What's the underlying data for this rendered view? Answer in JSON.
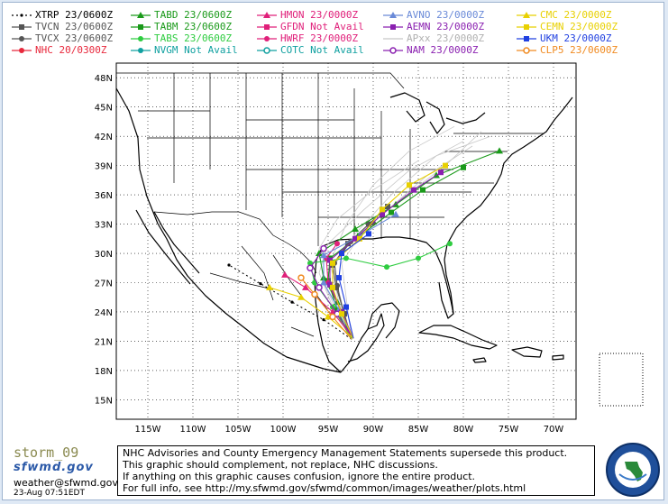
{
  "legend": [
    {
      "label": "XTRP 23/0600Z",
      "color": "#000000",
      "marker": "dot",
      "dashed": true
    },
    {
      "label": "TVCN 23/0600Z",
      "color": "#555555",
      "marker": "square",
      "dashed": false
    },
    {
      "label": "TVCX 23/0600Z",
      "color": "#555555",
      "marker": "circle",
      "dashed": false
    },
    {
      "label": "NHC 20/0300Z",
      "color": "#e8283c",
      "marker": "circle",
      "dashed": false
    },
    {
      "label": "TABD 23/0600Z",
      "color": "#1a9a1a",
      "marker": "triangle",
      "dashed": false
    },
    {
      "label": "TABM 23/0600Z",
      "color": "#1a9a1a",
      "marker": "square",
      "dashed": false
    },
    {
      "label": "TABS 23/0600Z",
      "color": "#2ecc40",
      "marker": "circle",
      "dashed": false
    },
    {
      "label": "NVGM Not Avail",
      "color": "#10a0a0",
      "marker": "circle",
      "dashed": false
    },
    {
      "label": "HMON 23/0000Z",
      "color": "#e0207a",
      "marker": "triangle",
      "dashed": false
    },
    {
      "label": "GFDN Not Avail",
      "color": "#e0207a",
      "marker": "square",
      "dashed": false
    },
    {
      "label": "HWRF 23/0000Z",
      "color": "#e0207a",
      "marker": "circle",
      "dashed": false
    },
    {
      "label": "COTC Not Avail",
      "color": "#10a0a0",
      "marker": "ring",
      "dashed": false
    },
    {
      "label": "AVNO 23/0000Z",
      "color": "#6a8ad8",
      "marker": "triangle",
      "dashed": false
    },
    {
      "label": "AEMN 23/0000Z",
      "color": "#8a20b0",
      "marker": "square",
      "dashed": false
    },
    {
      "label": "APxx 23/0000Z",
      "color": "#c8c8c8",
      "marker": "none",
      "dashed": false
    },
    {
      "label": "NAM 23/0000Z",
      "color": "#8a20b0",
      "marker": "ring",
      "dashed": false
    },
    {
      "label": "CMC 23/0000Z",
      "color": "#e8d000",
      "marker": "triangle",
      "dashed": false
    },
    {
      "label": "CEMN 23/0000Z",
      "color": "#e8d000",
      "marker": "square",
      "dashed": false
    },
    {
      "label": "UKM 23/0000Z",
      "color": "#2040e0",
      "marker": "square",
      "dashed": false
    },
    {
      "label": "CLP5 23/0600Z",
      "color": "#f08a20",
      "marker": "ring",
      "dashed": false
    }
  ],
  "map": {
    "lat_labels": [
      "48N",
      "45N",
      "42N",
      "39N",
      "36N",
      "33N",
      "30N",
      "27N",
      "24N",
      "21N",
      "18N",
      "15N"
    ],
    "lon_labels": [
      "115W",
      "110W",
      "105W",
      "100W",
      "95W",
      "90W",
      "85W",
      "80W",
      "75W",
      "70W"
    ],
    "lat_values": [
      48,
      45,
      42,
      39,
      36,
      33,
      30,
      27,
      24,
      21,
      18,
      15
    ],
    "lon_values": [
      -115,
      -110,
      -105,
      -100,
      -95,
      -90,
      -85,
      -80,
      -75,
      -70
    ],
    "lon_range": [
      -118.5,
      -67.5
    ],
    "lat_range": [
      13,
      49.5
    ]
  },
  "tracks": [
    {
      "model": "XTRP 23/0600Z",
      "color": "#000000",
      "marker": "dot",
      "dashed": true,
      "points": [
        [
          -92.4,
          21.2
        ],
        [
          -95.5,
          23.2
        ],
        [
          -99.0,
          25.0
        ],
        [
          -102.5,
          26.9
        ],
        [
          -106.0,
          28.8
        ]
      ]
    },
    {
      "model": "TVCN 23/0600Z",
      "color": "#555555",
      "marker": "square",
      "dashed": false,
      "points": [
        [
          -92.4,
          21.2
        ],
        [
          -93.2,
          23.8
        ],
        [
          -94.1,
          26.5
        ],
        [
          -94.5,
          28.8
        ],
        [
          -92.8,
          31.0
        ],
        [
          -90.5,
          33.0
        ],
        [
          -88.4,
          34.8
        ]
      ]
    },
    {
      "model": "TVCX 23/0600Z",
      "color": "#555555",
      "marker": "circle",
      "dashed": false,
      "points": [
        [
          -92.4,
          21.2
        ],
        [
          -93.3,
          23.9
        ],
        [
          -94.0,
          26.7
        ],
        [
          -94.3,
          29.0
        ],
        [
          -92.5,
          31.2
        ],
        [
          -90.0,
          33.1
        ]
      ]
    },
    {
      "model": "TABD 23/0600Z",
      "color": "#1a9a1a",
      "marker": "triangle",
      "dashed": false,
      "points": [
        [
          -92.4,
          21.2
        ],
        [
          -94.0,
          25.0
        ],
        [
          -95.5,
          27.5
        ],
        [
          -96.0,
          30.0
        ],
        [
          -92.0,
          32.5
        ],
        [
          -87.5,
          35.0
        ],
        [
          -83.0,
          38.0
        ],
        [
          -76.0,
          40.5
        ]
      ]
    },
    {
      "model": "TABM 23/0600Z",
      "color": "#1a9a1a",
      "marker": "square",
      "dashed": false,
      "points": [
        [
          -92.4,
          21.2
        ],
        [
          -94.0,
          24.2
        ],
        [
          -95.0,
          27.2
        ],
        [
          -94.8,
          29.5
        ],
        [
          -91.5,
          31.8
        ],
        [
          -88.0,
          34.2
        ],
        [
          -84.5,
          36.5
        ],
        [
          -80.0,
          38.8
        ]
      ]
    },
    {
      "model": "TABS 23/0600Z",
      "color": "#2ecc40",
      "marker": "circle",
      "dashed": false,
      "points": [
        [
          -92.4,
          21.2
        ],
        [
          -94.5,
          24.5
        ],
        [
          -96.5,
          27.0
        ],
        [
          -97.0,
          29.0
        ],
        [
          -93.0,
          29.5
        ],
        [
          -88.5,
          28.6
        ],
        [
          -85.0,
          29.5
        ],
        [
          -81.5,
          31.0
        ]
      ]
    },
    {
      "model": "HMON 23/0000Z",
      "color": "#e0207a",
      "marker": "triangle",
      "dashed": false,
      "points": [
        [
          -92.2,
          21.3
        ],
        [
          -94.5,
          24.0
        ],
        [
          -97.5,
          26.5
        ],
        [
          -99.8,
          27.8
        ]
      ]
    },
    {
      "model": "HWRF 23/0000Z",
      "color": "#e0207a",
      "marker": "circle",
      "dashed": false,
      "points": [
        [
          -92.2,
          21.3
        ],
        [
          -93.5,
          24.0
        ],
        [
          -95.0,
          27.0
        ],
        [
          -95.2,
          29.5
        ],
        [
          -94.0,
          31.0
        ]
      ]
    },
    {
      "model": "AVNO 23/0000Z",
      "color": "#6a8ad8",
      "marker": "triangle",
      "dashed": false,
      "points": [
        [
          -92.2,
          21.3
        ],
        [
          -93.8,
          24.2
        ],
        [
          -95.5,
          27.0
        ],
        [
          -95.5,
          29.8
        ],
        [
          -91.5,
          31.8
        ],
        [
          -87.5,
          34.0
        ]
      ]
    },
    {
      "model": "AEMN 23/0000Z",
      "color": "#8a20b0",
      "marker": "square",
      "dashed": false,
      "points": [
        [
          -92.2,
          21.3
        ],
        [
          -93.5,
          24.0
        ],
        [
          -94.8,
          26.8
        ],
        [
          -94.8,
          29.3
        ],
        [
          -92.0,
          31.5
        ],
        [
          -89.0,
          34.0
        ],
        [
          -85.5,
          36.5
        ],
        [
          -82.5,
          38.3
        ]
      ]
    },
    {
      "model": "NAM 23/0000Z",
      "color": "#8a20b0",
      "marker": "ring",
      "dashed": false,
      "points": [
        [
          -92.2,
          21.3
        ],
        [
          -94.0,
          23.8
        ],
        [
          -96.0,
          26.5
        ],
        [
          -97.0,
          28.5
        ],
        [
          -95.5,
          30.5
        ]
      ]
    },
    {
      "model": "CMC 23/0000Z",
      "color": "#e8d000",
      "marker": "triangle",
      "dashed": false,
      "points": [
        [
          -92.2,
          21.3
        ],
        [
          -95.0,
          23.5
        ],
        [
          -98.0,
          25.5
        ],
        [
          -101.5,
          26.5
        ]
      ]
    },
    {
      "model": "CEMN 23/0000Z",
      "color": "#e8d000",
      "marker": "square",
      "dashed": false,
      "points": [
        [
          -92.2,
          21.3
        ],
        [
          -93.5,
          23.8
        ],
        [
          -94.5,
          26.5
        ],
        [
          -94.5,
          29.0
        ],
        [
          -91.5,
          31.5
        ],
        [
          -89.0,
          34.5
        ],
        [
          -86.0,
          37.0
        ],
        [
          -82.0,
          39.0
        ]
      ]
    },
    {
      "model": "UKM 23/0000Z",
      "color": "#2040e0",
      "marker": "square",
      "dashed": false,
      "points": [
        [
          -92.2,
          21.3
        ],
        [
          -93.0,
          24.5
        ],
        [
          -93.8,
          27.5
        ],
        [
          -93.5,
          30.0
        ],
        [
          -90.5,
          32.0
        ]
      ]
    },
    {
      "model": "CLP5 23/0600Z",
      "color": "#f08a20",
      "marker": "ring",
      "dashed": false,
      "points": [
        [
          -92.4,
          21.2
        ],
        [
          -94.5,
          23.5
        ],
        [
          -96.5,
          25.8
        ],
        [
          -98.0,
          27.5
        ]
      ]
    }
  ],
  "footer": {
    "storm_name": "storm_09",
    "logo_text": "sfwmd.gov",
    "email": "weather@sfwmd.gov",
    "timestamp": "23-Aug 07:51EDT",
    "disclaimer": [
      "NHC Advisories and County Emergency Management Statements supersede this product.",
      "This graphic should complement, not replace, NHC discussions.",
      "If anything on this graphic causes confusion, ignore the entire product.",
      "For full info, see  http://my.sfwmd.gov/sfwmd/common/images/weather/plots.html"
    ]
  }
}
